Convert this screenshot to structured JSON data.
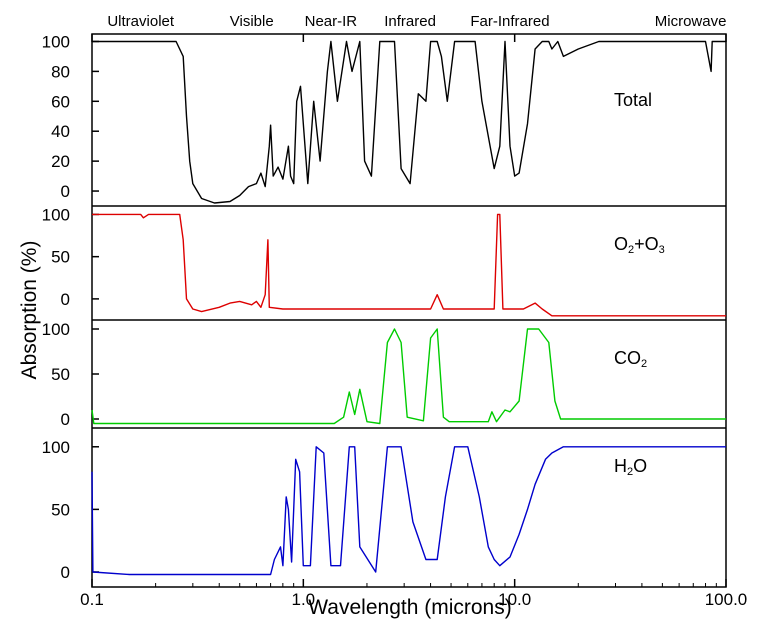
{
  "chart_data": {
    "type": "line",
    "x_scale": "log",
    "xlim": [
      0.1,
      100.0
    ],
    "xlabel": "Wavelength (microns)",
    "ylabel": "Absorption (%)",
    "x_ticks": [
      {
        "value": 0.1,
        "label": "0.1"
      },
      {
        "value": 1.0,
        "label": "1.0"
      },
      {
        "value": 10.0,
        "label": "10.0"
      },
      {
        "value": 100.0,
        "label": "100.0"
      }
    ],
    "bands": [
      {
        "label": "Ultraviolet",
        "center": 0.17
      },
      {
        "label": "Visible",
        "center": 0.57
      },
      {
        "label": "Near-IR",
        "center": 1.35
      },
      {
        "label": "Infrared",
        "center": 3.2
      },
      {
        "label": "Far-Infrared",
        "center": 9.5
      },
      {
        "label": "Microwave",
        "center": 68
      }
    ],
    "panels": [
      {
        "id": "total",
        "label": "Total",
        "label_parts": [
          {
            "text": "Total",
            "sub": false
          }
        ],
        "color": "#000000",
        "ylim": [
          -10,
          105
        ],
        "y_ticks": [
          0,
          20,
          40,
          60,
          80,
          100
        ],
        "points": [
          [
            0.1,
            100
          ],
          [
            0.25,
            100
          ],
          [
            0.27,
            90
          ],
          [
            0.28,
            50
          ],
          [
            0.29,
            20
          ],
          [
            0.3,
            5
          ],
          [
            0.33,
            -5
          ],
          [
            0.38,
            -8
          ],
          [
            0.45,
            -7
          ],
          [
            0.5,
            -3
          ],
          [
            0.55,
            3
          ],
          [
            0.6,
            5
          ],
          [
            0.63,
            12
          ],
          [
            0.66,
            3
          ],
          [
            0.69,
            30
          ],
          [
            0.7,
            44
          ],
          [
            0.72,
            10
          ],
          [
            0.76,
            16
          ],
          [
            0.8,
            8
          ],
          [
            0.85,
            30
          ],
          [
            0.87,
            10
          ],
          [
            0.9,
            5
          ],
          [
            0.93,
            60
          ],
          [
            0.97,
            70
          ],
          [
            1.05,
            5
          ],
          [
            1.12,
            60
          ],
          [
            1.2,
            20
          ],
          [
            1.3,
            80
          ],
          [
            1.35,
            100
          ],
          [
            1.45,
            60
          ],
          [
            1.6,
            100
          ],
          [
            1.7,
            80
          ],
          [
            1.85,
            100
          ],
          [
            1.95,
            20
          ],
          [
            2.1,
            10
          ],
          [
            2.3,
            100
          ],
          [
            2.7,
            100
          ],
          [
            2.9,
            15
          ],
          [
            3.2,
            5
          ],
          [
            3.5,
            65
          ],
          [
            3.8,
            60
          ],
          [
            4.0,
            100
          ],
          [
            4.3,
            100
          ],
          [
            4.5,
            90
          ],
          [
            4.8,
            60
          ],
          [
            5.2,
            100
          ],
          [
            6.0,
            100
          ],
          [
            6.5,
            100
          ],
          [
            7.0,
            60
          ],
          [
            8.0,
            15
          ],
          [
            8.5,
            30
          ],
          [
            9.0,
            100
          ],
          [
            9.5,
            30
          ],
          [
            10.0,
            10
          ],
          [
            10.5,
            12
          ],
          [
            11.5,
            45
          ],
          [
            12.5,
            95
          ],
          [
            13.5,
            100
          ],
          [
            14.5,
            100
          ],
          [
            15.0,
            95
          ],
          [
            16.0,
            100
          ],
          [
            17.0,
            90
          ],
          [
            20,
            95
          ],
          [
            25,
            100
          ],
          [
            80,
            100
          ],
          [
            85,
            80
          ],
          [
            86,
            100
          ],
          [
            100,
            100
          ]
        ]
      },
      {
        "id": "o2o3",
        "label": "O2+O3",
        "label_parts": [
          {
            "text": "O",
            "sub": false
          },
          {
            "text": "2",
            "sub": true
          },
          {
            "text": "+O",
            "sub": false
          },
          {
            "text": "3",
            "sub": true
          }
        ],
        "color": "#dd0000",
        "ylim": [
          -25,
          110
        ],
        "y_ticks": [
          0,
          50,
          100
        ],
        "points": [
          [
            0.1,
            100
          ],
          [
            0.17,
            100
          ],
          [
            0.175,
            96
          ],
          [
            0.185,
            100
          ],
          [
            0.26,
            100
          ],
          [
            0.27,
            70
          ],
          [
            0.28,
            0
          ],
          [
            0.3,
            -12
          ],
          [
            0.33,
            -15
          ],
          [
            0.4,
            -10
          ],
          [
            0.45,
            -5
          ],
          [
            0.5,
            -3
          ],
          [
            0.57,
            -7
          ],
          [
            0.6,
            -3
          ],
          [
            0.63,
            -10
          ],
          [
            0.66,
            5
          ],
          [
            0.68,
            70
          ],
          [
            0.69,
            -10
          ],
          [
            0.8,
            -12
          ],
          [
            4.0,
            -12
          ],
          [
            4.3,
            5
          ],
          [
            4.6,
            -12
          ],
          [
            8.0,
            -12
          ],
          [
            8.3,
            100
          ],
          [
            8.5,
            100
          ],
          [
            8.8,
            -12
          ],
          [
            11.0,
            -12
          ],
          [
            12.5,
            -5
          ],
          [
            13.5,
            -12
          ],
          [
            15.0,
            -20
          ],
          [
            100,
            -20
          ]
        ]
      },
      {
        "id": "co2",
        "label": "CO2",
        "label_parts": [
          {
            "text": "CO",
            "sub": false
          },
          {
            "text": "2",
            "sub": true
          }
        ],
        "color": "#00cc00",
        "ylim": [
          -10,
          110
        ],
        "y_ticks": [
          0,
          50,
          100
        ],
        "points": [
          [
            0.1,
            10
          ],
          [
            0.102,
            -5
          ],
          [
            1.4,
            -5
          ],
          [
            1.55,
            2
          ],
          [
            1.65,
            30
          ],
          [
            1.75,
            5
          ],
          [
            1.85,
            33
          ],
          [
            2.0,
            -3
          ],
          [
            2.3,
            -5
          ],
          [
            2.5,
            85
          ],
          [
            2.7,
            100
          ],
          [
            2.9,
            85
          ],
          [
            3.1,
            2
          ],
          [
            3.7,
            -2
          ],
          [
            4.0,
            90
          ],
          [
            4.3,
            100
          ],
          [
            4.6,
            2
          ],
          [
            4.9,
            -3
          ],
          [
            7.5,
            -3
          ],
          [
            7.8,
            8
          ],
          [
            8.2,
            -3
          ],
          [
            9.0,
            10
          ],
          [
            9.5,
            8
          ],
          [
            10.5,
            20
          ],
          [
            11.5,
            100
          ],
          [
            13.0,
            100
          ],
          [
            14.5,
            85
          ],
          [
            15.5,
            20
          ],
          [
            16.5,
            0
          ],
          [
            18,
            0
          ],
          [
            100,
            0
          ]
        ]
      },
      {
        "id": "h2o",
        "label": "H2O",
        "label_parts": [
          {
            "text": "H",
            "sub": false
          },
          {
            "text": "2",
            "sub": true
          },
          {
            "text": "O",
            "sub": false
          }
        ],
        "color": "#0000cc",
        "ylim": [
          -12,
          115
        ],
        "y_ticks": [
          0,
          50,
          100
        ],
        "points": [
          [
            0.1,
            80
          ],
          [
            0.101,
            0
          ],
          [
            0.15,
            -2
          ],
          [
            0.5,
            -2
          ],
          [
            0.7,
            -2
          ],
          [
            0.73,
            10
          ],
          [
            0.78,
            20
          ],
          [
            0.8,
            5
          ],
          [
            0.83,
            60
          ],
          [
            0.85,
            50
          ],
          [
            0.88,
            8
          ],
          [
            0.92,
            90
          ],
          [
            0.96,
            80
          ],
          [
            1.0,
            5
          ],
          [
            1.08,
            5
          ],
          [
            1.15,
            100
          ],
          [
            1.25,
            95
          ],
          [
            1.35,
            5
          ],
          [
            1.5,
            5
          ],
          [
            1.65,
            100
          ],
          [
            1.75,
            100
          ],
          [
            1.85,
            20
          ],
          [
            2.2,
            0
          ],
          [
            2.5,
            100
          ],
          [
            2.9,
            100
          ],
          [
            3.3,
            40
          ],
          [
            3.8,
            10
          ],
          [
            4.3,
            10
          ],
          [
            4.7,
            60
          ],
          [
            5.2,
            100
          ],
          [
            6.0,
            100
          ],
          [
            6.8,
            60
          ],
          [
            7.5,
            20
          ],
          [
            8.0,
            10
          ],
          [
            8.5,
            5
          ],
          [
            9.5,
            12
          ],
          [
            10.5,
            30
          ],
          [
            11.5,
            50
          ],
          [
            12.5,
            70
          ],
          [
            14.0,
            90
          ],
          [
            15.0,
            95
          ],
          [
            17.0,
            100
          ],
          [
            20,
            100
          ],
          [
            100,
            100
          ]
        ]
      }
    ]
  }
}
